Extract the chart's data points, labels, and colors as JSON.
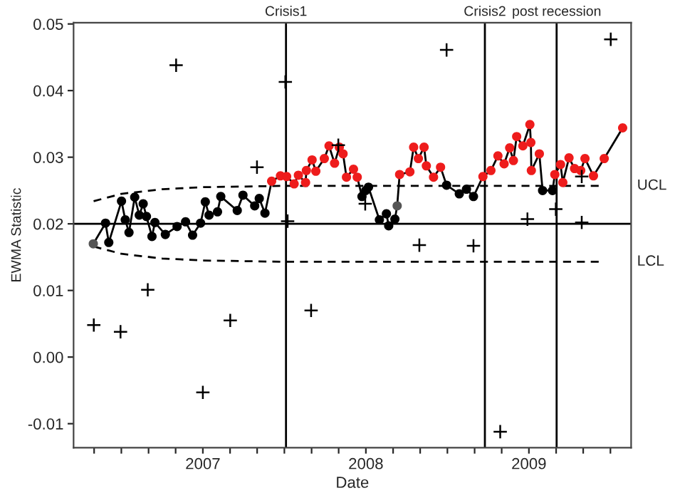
{
  "chart_data": {
    "type": "line",
    "xlabel": "Date",
    "ylabel": "EWMA Statistic",
    "xlim": [
      2006.207,
      2009.627
    ],
    "xticks": [
      {
        "value": 2006.333,
        "label": null
      },
      {
        "value": 2006.5,
        "label": null
      },
      {
        "value": 2006.667,
        "label": null
      },
      {
        "value": 2006.833,
        "label": null
      },
      {
        "value": 2007,
        "label": "2007"
      },
      {
        "value": 2007.167,
        "label": null
      },
      {
        "value": 2007.333,
        "label": null
      },
      {
        "value": 2007.5,
        "label": null
      },
      {
        "value": 2007.667,
        "label": null
      },
      {
        "value": 2007.833,
        "label": null
      },
      {
        "value": 2008,
        "label": "2008"
      },
      {
        "value": 2008.167,
        "label": null
      },
      {
        "value": 2008.333,
        "label": null
      },
      {
        "value": 2008.5,
        "label": null
      },
      {
        "value": 2008.667,
        "label": null
      },
      {
        "value": 2008.833,
        "label": null
      },
      {
        "value": 2009,
        "label": "2009"
      },
      {
        "value": 2009.167,
        "label": null
      },
      {
        "value": 2009.333,
        "label": null
      },
      {
        "value": 2009.5,
        "label": null
      }
    ],
    "ylim": [
      -0.0136,
      0.0502
    ],
    "yticks": [
      -0.01,
      {
        "value": 0.0,
        "label": "0.00"
      },
      0.01,
      0.02,
      0.03,
      0.04,
      0.05
    ],
    "grid": false,
    "legend": false,
    "ref_lines": [
      {
        "axis": "y",
        "value": 0.02,
        "color": "#000000",
        "line_style": "solid"
      },
      {
        "axis": "x",
        "value": 2007.51,
        "label": "Crisis1",
        "color": "#000000",
        "line_style": "solid"
      },
      {
        "axis": "x",
        "value": 2008.73,
        "label": "Crisis2",
        "color": "#000000",
        "line_style": "solid"
      },
      {
        "axis": "x",
        "value": 2009.17,
        "label": "post recession",
        "color": "#000000",
        "line_style": "solid"
      }
    ],
    "series": [
      {
        "type": "line",
        "name": "UCL",
        "color": "#000000",
        "line_style": "dashed",
        "marker": "none",
        "x": [
          2006.33,
          2006.5,
          2006.75,
          2007.0,
          2007.5,
          2009.45
        ],
        "values": [
          0.0234,
          0.0245,
          0.0252,
          0.0255,
          0.0257,
          0.0257
        ]
      },
      {
        "type": "line",
        "name": "LCL",
        "color": "#000000",
        "line_style": "dashed",
        "marker": "none",
        "x": [
          2006.33,
          2006.5,
          2006.75,
          2007.0,
          2007.5,
          2009.45
        ],
        "values": [
          0.0166,
          0.0155,
          0.0148,
          0.0145,
          0.0143,
          0.0143
        ]
      },
      {
        "type": "scatter",
        "color": "#000000",
        "marker": "cross",
        "x": [
          2006.331,
          2006.495,
          2006.662,
          2006.836,
          2007.0,
          2007.168,
          2007.332,
          2007.506,
          2007.52,
          2007.664,
          2007.831,
          2007.996,
          2008.328,
          2008.495,
          2008.66,
          2008.824,
          2008.991,
          2009.165,
          2009.324,
          2009.324,
          2009.502
        ],
        "values": [
          0.0048,
          0.0038,
          0.0101,
          0.0438,
          -0.0053,
          0.0055,
          0.0285,
          0.0413,
          0.0204,
          0.007,
          0.0318,
          0.023,
          0.0168,
          0.0461,
          0.0167,
          -0.0112,
          0.0207,
          0.0222,
          0.0271,
          0.0202,
          0.0477
        ]
      },
      {
        "type": "line",
        "color": "#000000",
        "line_style": "solid",
        "marker": "circle",
        "x": [
          2006.328,
          2006.403,
          2006.423,
          2006.501,
          2006.524,
          2006.547,
          2006.582,
          2006.61,
          2006.634,
          2006.654,
          2006.688,
          2006.706,
          2006.77,
          2006.842,
          2006.894,
          2006.937,
          2006.986,
          2007.015,
          2007.038,
          2007.09,
          2007.11,
          2007.211,
          2007.246,
          2007.318,
          2007.346,
          2007.381,
          2007.422,
          2007.476,
          2007.514,
          2007.56,
          2007.586,
          2007.63,
          2007.635,
          2007.67,
          2007.693,
          2007.745,
          2007.774,
          2007.808,
          2007.837,
          2007.86,
          2007.881,
          2007.924,
          2007.947,
          2007.976,
          2007.999,
          2008.016,
          2008.083,
          2008.126,
          2008.14,
          2008.178,
          2008.192,
          2008.207,
          2008.27,
          2008.293,
          2008.322,
          2008.357,
          2008.371,
          2008.415,
          2008.458,
          2008.495,
          2008.573,
          2008.617,
          2008.66,
          2008.718,
          2008.767,
          2008.81,
          2008.848,
          2008.882,
          2008.905,
          2008.925,
          2008.963,
          2009.006,
          2009.012,
          2009.015,
          2009.064,
          2009.084,
          2009.145,
          2009.159,
          2009.194,
          2009.208,
          2009.246,
          2009.28,
          2009.318,
          2009.344,
          2009.396,
          2009.462,
          2009.575
        ],
        "values": [
          0.017,
          0.0201,
          0.0172,
          0.0234,
          0.0206,
          0.0187,
          0.024,
          0.0213,
          0.023,
          0.0211,
          0.0181,
          0.0202,
          0.0184,
          0.0196,
          0.0203,
          0.0183,
          0.0201,
          0.0233,
          0.0213,
          0.0218,
          0.0241,
          0.022,
          0.0243,
          0.0227,
          0.0238,
          0.0216,
          0.0264,
          0.0272,
          0.0271,
          0.026,
          0.0273,
          0.0262,
          0.028,
          0.0296,
          0.0279,
          0.0298,
          0.0317,
          0.0291,
          0.0315,
          0.0305,
          0.027,
          0.0282,
          0.027,
          0.0241,
          0.025,
          0.0255,
          0.0206,
          0.0215,
          0.0197,
          0.0207,
          0.0227,
          0.0274,
          0.0278,
          0.0315,
          0.0298,
          0.0315,
          0.0287,
          0.027,
          0.0285,
          0.0258,
          0.0245,
          0.0252,
          0.0241,
          0.0271,
          0.028,
          0.0302,
          0.029,
          0.0314,
          0.0295,
          0.0331,
          0.0317,
          0.0349,
          0.0322,
          0.028,
          0.0305,
          0.025,
          0.025,
          0.0274,
          0.0289,
          0.0262,
          0.0299,
          0.0283,
          0.028,
          0.0298,
          0.0272,
          0.0298,
          0.0344
        ],
        "colors": [
          "#555555",
          "#000000",
          "#000000",
          "#000000",
          "#000000",
          "#000000",
          "#000000",
          "#000000",
          "#000000",
          "#000000",
          "#000000",
          "#000000",
          "#000000",
          "#000000",
          "#000000",
          "#000000",
          "#000000",
          "#000000",
          "#000000",
          "#000000",
          "#000000",
          "#000000",
          "#000000",
          "#000000",
          "#000000",
          "#000000",
          "#ee1c1c",
          "#ee1c1c",
          "#ee1c1c",
          "#ee1c1c",
          "#ee1c1c",
          "#ee1c1c",
          "#ee1c1c",
          "#ee1c1c",
          "#ee1c1c",
          "#ee1c1c",
          "#ee1c1c",
          "#ee1c1c",
          "#ee1c1c",
          "#ee1c1c",
          "#ee1c1c",
          "#ee1c1c",
          "#ee1c1c",
          "#000000",
          "#000000",
          "#000000",
          "#000000",
          "#000000",
          "#000000",
          "#000000",
          "#555555",
          "#ee1c1c",
          "#ee1c1c",
          "#ee1c1c",
          "#ee1c1c",
          "#ee1c1c",
          "#ee1c1c",
          "#ee1c1c",
          "#ee1c1c",
          "#000000",
          "#000000",
          "#000000",
          "#000000",
          "#ee1c1c",
          "#ee1c1c",
          "#ee1c1c",
          "#ee1c1c",
          "#ee1c1c",
          "#ee1c1c",
          "#ee1c1c",
          "#ee1c1c",
          "#ee1c1c",
          "#ee1c1c",
          "#ee1c1c",
          "#ee1c1c",
          "#000000",
          "#000000",
          "#ee1c1c",
          "#ee1c1c",
          "#ee1c1c",
          "#ee1c1c",
          "#ee1c1c",
          "#ee1c1c",
          "#ee1c1c",
          "#ee1c1c",
          "#ee1c1c",
          "#ee1c1c"
        ]
      }
    ]
  }
}
